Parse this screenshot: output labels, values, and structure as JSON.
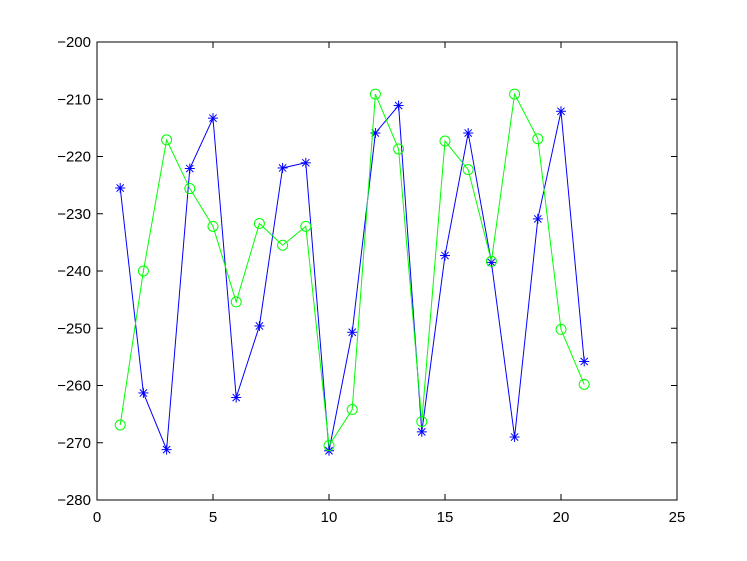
{
  "chart_data": {
    "type": "line",
    "title": "",
    "xlabel": "",
    "ylabel": "",
    "xlim": [
      0,
      25
    ],
    "ylim": [
      -280,
      -200
    ],
    "xticks": [
      0,
      5,
      10,
      15,
      20,
      25
    ],
    "yticks": [
      -280,
      -270,
      -260,
      -250,
      -240,
      -230,
      -220,
      -210,
      -200
    ],
    "grid": false,
    "x": [
      1,
      2,
      3,
      4,
      5,
      6,
      7,
      8,
      9,
      10,
      11,
      12,
      13,
      14,
      15,
      16,
      17,
      18,
      19,
      20,
      21
    ],
    "series": [
      {
        "marker": "asterisk",
        "color": "#0000ff",
        "values": [
          -225.5,
          -261.3,
          -271.2,
          -222.1,
          -213.3,
          -262.1,
          -249.6,
          -222.0,
          -221.1,
          -271.4,
          -250.7,
          -215.9,
          -211.1,
          -268.1,
          -237.3,
          -215.9,
          -238.5,
          -269.0,
          -230.9,
          -212.1,
          -255.8
        ]
      },
      {
        "marker": "circle",
        "color": "#00ff00",
        "values": [
          -266.9,
          -240.0,
          -217.1,
          -225.6,
          -232.2,
          -245.4,
          -231.7,
          -235.5,
          -232.2,
          -270.5,
          -264.2,
          -209.1,
          -218.7,
          -266.3,
          -217.3,
          -222.3,
          -238.3,
          -209.1,
          -216.9,
          -250.2,
          -259.8
        ]
      }
    ]
  }
}
